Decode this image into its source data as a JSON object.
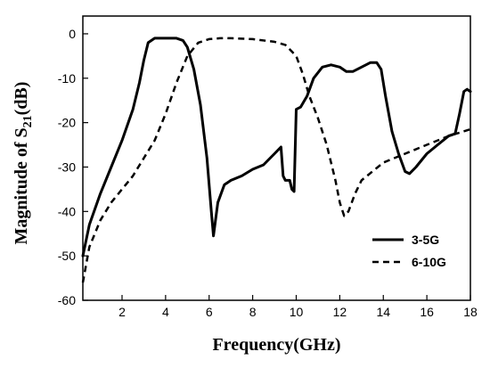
{
  "chart_data": {
    "type": "line",
    "xlabel": "Frequency(GHz)",
    "ylabel": "Magnitude of S21(dB)",
    "ylabel_parts": {
      "before": "Magnitude of S",
      "subscript": "21",
      "after": "(dB)"
    },
    "xlim": [
      0.2,
      18
    ],
    "ylim": [
      -60,
      4
    ],
    "xticks": [
      2,
      4,
      6,
      8,
      10,
      12,
      14,
      16,
      18
    ],
    "yticks": [
      0,
      -10,
      -20,
      -30,
      -40,
      -50,
      -60
    ],
    "grid": false,
    "legend_position": "bottom-right",
    "series": [
      {
        "name": "3-5G",
        "style": "solid",
        "color": "#000000",
        "x": [
          0.2,
          0.5,
          1.0,
          1.5,
          2.0,
          2.5,
          2.8,
          3.0,
          3.2,
          3.5,
          4.0,
          4.5,
          4.8,
          5.0,
          5.3,
          5.6,
          5.9,
          6.1,
          6.2,
          6.4,
          6.7,
          7.0,
          7.5,
          8.0,
          8.5,
          9.0,
          9.3,
          9.4,
          9.5,
          9.7,
          9.8,
          9.9,
          10.0,
          10.2,
          10.5,
          10.8,
          11.2,
          11.6,
          12.0,
          12.3,
          12.6,
          13.0,
          13.4,
          13.7,
          13.9,
          14.1,
          14.4,
          14.7,
          15.0,
          15.2,
          15.5,
          16.0,
          16.5,
          17.0,
          17.3,
          17.5,
          17.7,
          17.85,
          18.0
        ],
        "y": [
          -50,
          -43,
          -36,
          -30,
          -24,
          -17,
          -11,
          -6,
          -2,
          -1,
          -1,
          -1,
          -1.5,
          -3,
          -8,
          -16,
          -28,
          -40,
          -45.5,
          -38,
          -34,
          -33,
          -32,
          -30.5,
          -29.5,
          -27,
          -25.5,
          -32,
          -33,
          -33,
          -35,
          -35.5,
          -17,
          -16.5,
          -14,
          -10,
          -7.5,
          -7,
          -7.5,
          -8.5,
          -8.5,
          -7.5,
          -6.5,
          -6.5,
          -8,
          -14,
          -22,
          -27,
          -31,
          -31.5,
          -30,
          -27,
          -25,
          -23,
          -22.5,
          -18,
          -13,
          -12.5,
          -13
        ]
      },
      {
        "name": "6-10G",
        "style": "dashed",
        "color": "#000000",
        "x": [
          0.2,
          0.5,
          1.0,
          1.5,
          2.0,
          2.5,
          3.0,
          3.5,
          4.0,
          4.5,
          5.0,
          5.5,
          6.0,
          6.5,
          7.0,
          8.0,
          9.0,
          9.5,
          10.0,
          10.3,
          10.6,
          11.0,
          11.4,
          11.8,
          12.0,
          12.2,
          12.4,
          12.7,
          13.0,
          13.5,
          14.0,
          15.0,
          16.0,
          17.0,
          18.0
        ],
        "y": [
          -56,
          -48,
          -42,
          -38,
          -35,
          -32,
          -28,
          -24,
          -18,
          -11,
          -5,
          -2,
          -1.2,
          -1,
          -1,
          -1.2,
          -1.8,
          -2.5,
          -5,
          -9,
          -14,
          -19,
          -25,
          -33,
          -38,
          -41,
          -40,
          -36,
          -33,
          -31,
          -29,
          -27,
          -25,
          -23,
          -21.5
        ]
      }
    ]
  }
}
